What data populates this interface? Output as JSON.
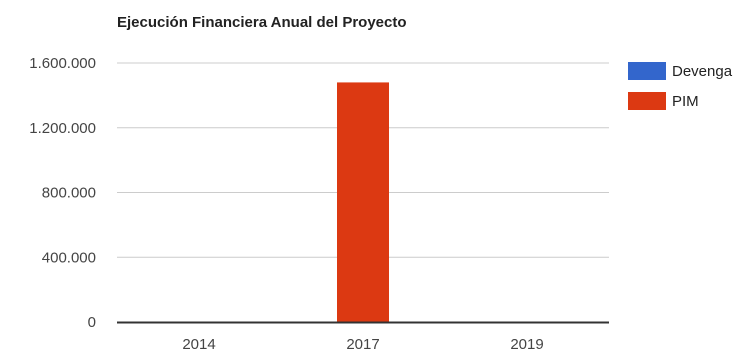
{
  "chart_data": {
    "type": "bar",
    "title": "Ejecución Financiera Anual del Proyecto",
    "categories": [
      "2014",
      "2017",
      "2019"
    ],
    "series": [
      {
        "name": "Devenga",
        "color": "#3366cc",
        "values": [
          0,
          0,
          0
        ]
      },
      {
        "name": "PIM",
        "color": "#dc3912",
        "values": [
          0,
          1480000,
          0
        ]
      }
    ],
    "y_ticks": [
      "0",
      "400.000",
      "800.000",
      "1.200.000",
      "1.600.000"
    ],
    "y_tick_values": [
      0,
      400000,
      800000,
      1200000,
      1600000
    ],
    "ylim": [
      0,
      1600000
    ],
    "grid": true,
    "legend_position": "right"
  }
}
